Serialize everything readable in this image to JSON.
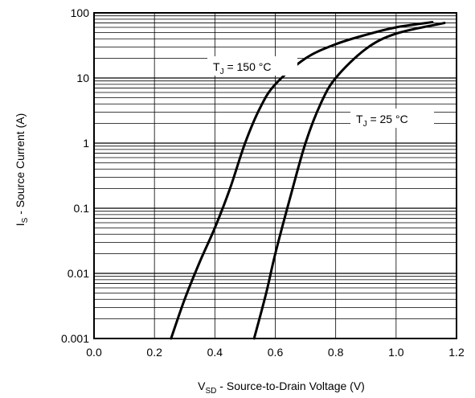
{
  "chart_data": {
    "type": "line",
    "title": "",
    "xlabel": {
      "main": "V",
      "sub": "SD",
      "rest": " - Source-to-Drain Voltage (V)"
    },
    "ylabel": {
      "main": "I",
      "sub": "S",
      "rest": " - Source Current (A)"
    },
    "x_scale": "linear",
    "y_scale": "log",
    "xlim": [
      0.0,
      1.2
    ],
    "ylim": [
      0.001,
      100
    ],
    "x_ticks": [
      "0.0",
      "0.2",
      "0.4",
      "0.6",
      "0.8",
      "1.0",
      "1.2"
    ],
    "y_ticks": [
      "0.001",
      "0.01",
      "0.1",
      "1",
      "10",
      "100"
    ],
    "grid": true,
    "series": [
      {
        "name": "TJ = 150 °C",
        "label": {
          "main": "T",
          "sub": "J",
          "rest": " = 150 °C"
        },
        "color": "#000000",
        "points": [
          [
            0.255,
            0.001
          ],
          [
            0.3,
            0.004
          ],
          [
            0.35,
            0.015
          ],
          [
            0.4,
            0.05
          ],
          [
            0.45,
            0.2
          ],
          [
            0.5,
            1.0
          ],
          [
            0.55,
            3.5
          ],
          [
            0.6,
            8.0
          ],
          [
            0.7,
            20.0
          ],
          [
            0.8,
            33.0
          ],
          [
            0.9,
            46.0
          ],
          [
            1.0,
            60.0
          ],
          [
            1.12,
            72.0
          ]
        ]
      },
      {
        "name": "TJ = 25 °C",
        "label": {
          "main": "T",
          "sub": "J",
          "rest": " = 25 °C"
        },
        "color": "#000000",
        "points": [
          [
            0.53,
            0.001
          ],
          [
            0.57,
            0.005
          ],
          [
            0.6,
            0.02
          ],
          [
            0.65,
            0.15
          ],
          [
            0.7,
            1.0
          ],
          [
            0.75,
            4.0
          ],
          [
            0.8,
            10.0
          ],
          [
            0.9,
            28.0
          ],
          [
            1.0,
            48.0
          ],
          [
            1.16,
            70.0
          ]
        ]
      }
    ]
  }
}
